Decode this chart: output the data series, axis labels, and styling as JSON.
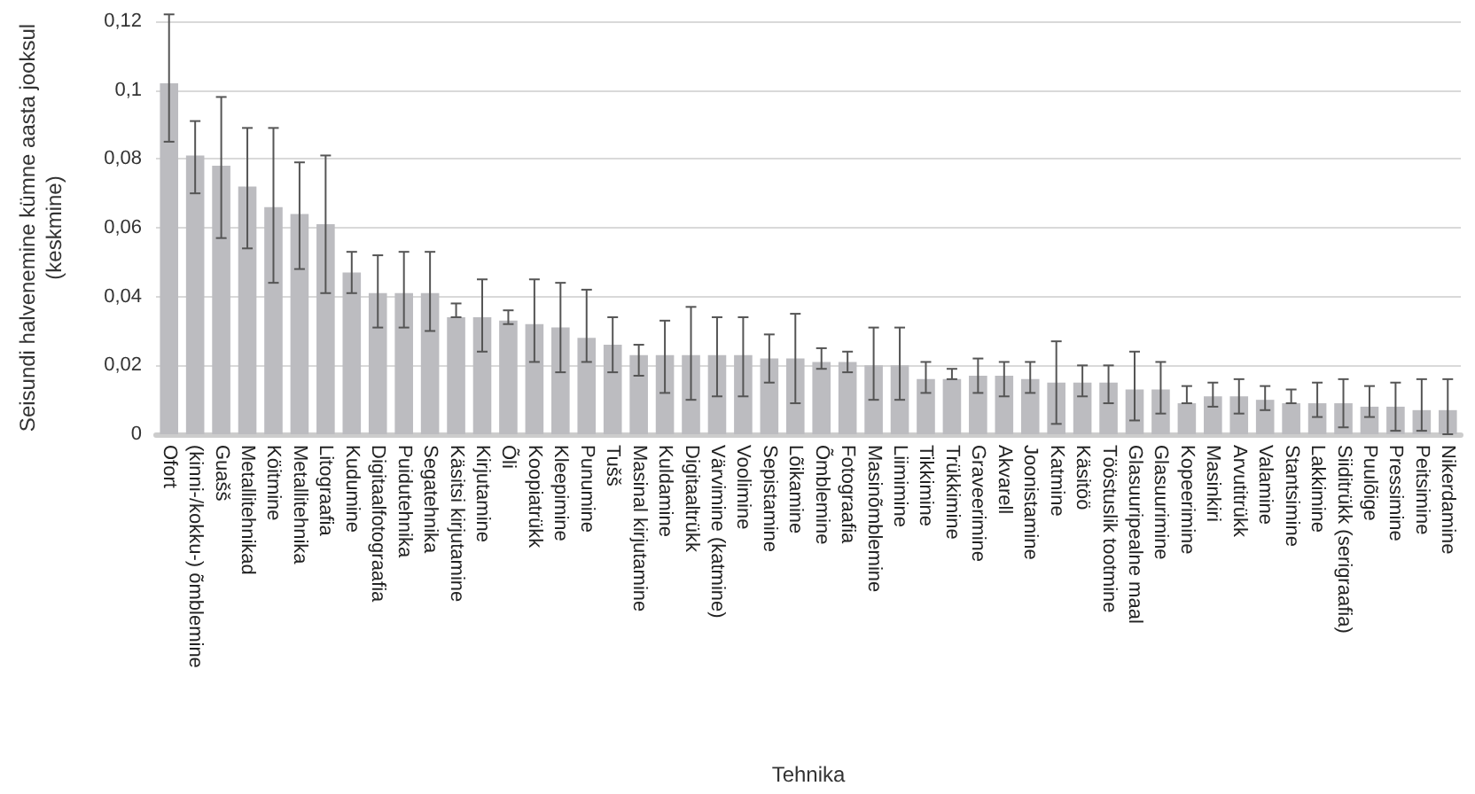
{
  "chart_data": {
    "type": "bar",
    "xlabel": "Tehnika",
    "ylabel": "Seisundi halvenemine kümne aasta jooksul (keskmine)",
    "categories": [
      "Ofort",
      "(kinni-/kokku-) õmblemine",
      "Guašš",
      "Metallitehnikad",
      "Köitmine",
      "Metallitehnika",
      "Litograafia",
      "Kudumine",
      "Digitaalfotograafia",
      "Puidutehnika",
      "Segatehnika",
      "Käsitsi kirjutamine",
      "Kirjutamine",
      "Õli",
      "Koopiatrükk",
      "Kleepimine",
      "Punumine",
      "Tušš",
      "Masinal kirjutamine",
      "Kuldamine",
      "Digitaaltrükk",
      "Värvimine (katmine)",
      "Voolimine",
      "Sepistamine",
      "Lõikamine",
      "Õmblemine",
      "Fotograafia",
      "Masinõmblemine",
      "Liimimine",
      "Tikkimine",
      "Trükkimine",
      "Graveerimine",
      "Akvarell",
      "Joonistamine",
      "Katmine",
      "Käsitöö",
      "Tööstuslik tootmine",
      "Glasuuripealne maal",
      "Glasuurimine",
      "Kopeerimine",
      "Masinkiri",
      "Arvutitrükk",
      "Valamine",
      "Stantsimine",
      "Lakkimine",
      "Siiditrükk (serigraafia)",
      "Puulõige",
      "Pressimine",
      "Peitsimine",
      "Nikerdamine"
    ],
    "values": [
      0.102,
      0.081,
      0.078,
      0.072,
      0.066,
      0.064,
      0.061,
      0.047,
      0.041,
      0.041,
      0.041,
      0.034,
      0.034,
      0.033,
      0.032,
      0.031,
      0.028,
      0.026,
      0.023,
      0.023,
      0.023,
      0.023,
      0.023,
      0.022,
      0.022,
      0.021,
      0.021,
      0.02,
      0.02,
      0.016,
      0.016,
      0.017,
      0.017,
      0.016,
      0.015,
      0.015,
      0.015,
      0.013,
      0.013,
      0.009,
      0.011,
      0.011,
      0.01,
      0.009,
      0.009,
      0.009,
      0.008,
      0.008,
      0.007,
      0.007
    ],
    "errors": [
      [
        0.085,
        0.122
      ],
      [
        0.07,
        0.091
      ],
      [
        0.057,
        0.098
      ],
      [
        0.054,
        0.089
      ],
      [
        0.044,
        0.089
      ],
      [
        0.048,
        0.079
      ],
      [
        0.041,
        0.081
      ],
      [
        0.041,
        0.053
      ],
      [
        0.031,
        0.052
      ],
      [
        0.031,
        0.053
      ],
      [
        0.03,
        0.053
      ],
      [
        0.034,
        0.038
      ],
      [
        0.024,
        0.045
      ],
      [
        0.032,
        0.036
      ],
      [
        0.021,
        0.045
      ],
      [
        0.018,
        0.044
      ],
      [
        0.021,
        0.042
      ],
      [
        0.018,
        0.034
      ],
      [
        0.017,
        0.026
      ],
      [
        0.012,
        0.033
      ],
      [
        0.01,
        0.037
      ],
      [
        0.011,
        0.034
      ],
      [
        0.011,
        0.034
      ],
      [
        0.015,
        0.029
      ],
      [
        0.009,
        0.035
      ],
      [
        0.019,
        0.025
      ],
      [
        0.018,
        0.024
      ],
      [
        0.01,
        0.031
      ],
      [
        0.01,
        0.031
      ],
      [
        0.012,
        0.021
      ],
      [
        0.016,
        0.019
      ],
      [
        0.012,
        0.022
      ],
      [
        0.011,
        0.021
      ],
      [
        0.012,
        0.021
      ],
      [
        0.003,
        0.027
      ],
      [
        0.011,
        0.02
      ],
      [
        0.009,
        0.02
      ],
      [
        0.004,
        0.024
      ],
      [
        0.006,
        0.021
      ],
      [
        0.009,
        0.014
      ],
      [
        0.008,
        0.015
      ],
      [
        0.006,
        0.016
      ],
      [
        0.007,
        0.014
      ],
      [
        0.009,
        0.013
      ],
      [
        0.005,
        0.015
      ],
      [
        0.002,
        0.016
      ],
      [
        0.005,
        0.014
      ],
      [
        0.001,
        0.015
      ],
      [
        0.001,
        0.016
      ],
      [
        0,
        0.016
      ]
    ],
    "color": "#bcbcc0",
    "ylim": [
      0,
      0.12
    ],
    "yticks": [
      {
        "value": 0,
        "label": "0"
      },
      {
        "value": 0.02,
        "label": "0,02"
      },
      {
        "value": 0.04,
        "label": "0,04"
      },
      {
        "value": 0.06,
        "label": "0,06"
      },
      {
        "value": 0.08,
        "label": "0,08"
      },
      {
        "value": 0.1,
        "label": "0,1"
      },
      {
        "value": 0.12,
        "label": "0,12"
      }
    ],
    "grid": "y"
  }
}
